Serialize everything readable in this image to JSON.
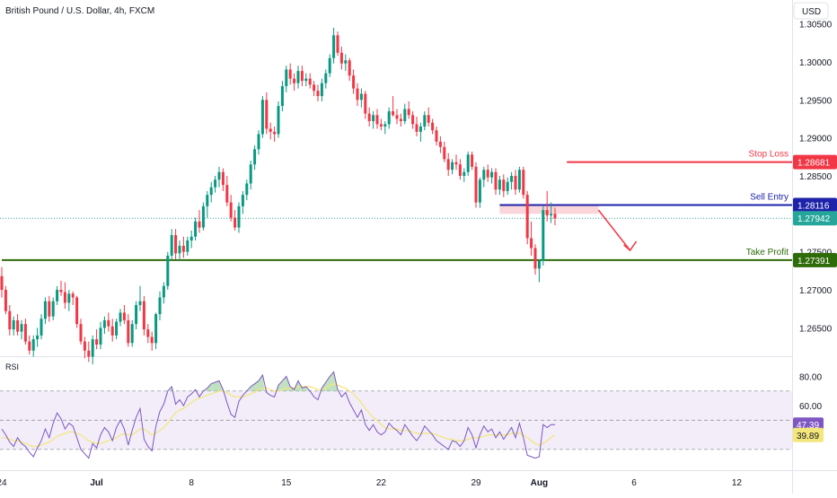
{
  "header": {
    "symbol_title": "British Pound / U.S. Dollar, 4h, FXCM",
    "currency": "USD",
    "rsi_label": "RSI"
  },
  "colors": {
    "up": "#089981",
    "down": "#f23645",
    "stop_loss": "#f23645",
    "sell_entry": "#1e22aa",
    "take_profit": "#2e6b09",
    "current_price_line": "#26a69a",
    "zone_fill": "#f8c8cf",
    "rsi_line": "#7e57c2",
    "rsi_ma": "#f3e67a",
    "rsi_band": "#ede7f6",
    "arrow": "#f23645"
  },
  "chart_data": [
    {
      "type": "candlestick",
      "title": "British Pound / U.S. Dollar, 4h, FXCM",
      "y_axis": {
        "ticks": [
          "1.26500",
          "1.27000",
          "1.27500",
          "1.28000",
          "1.28500",
          "1.29000",
          "1.29500",
          "1.30000",
          "1.30500"
        ],
        "ylim": [
          1.2615,
          1.3072
        ]
      },
      "x_axis": {
        "ticks": [
          "24",
          "Jul",
          "8",
          "15",
          "22",
          "29",
          "Aug",
          "6",
          "12"
        ],
        "tick_index": [
          0,
          24,
          48,
          72,
          96,
          120,
          136,
          160,
          186
        ]
      },
      "levels": [
        {
          "name": "Stop Loss",
          "value": 1.28681,
          "value_label": "1.28681"
        },
        {
          "name": "Sell Entry",
          "value": 1.28116,
          "value_label": "1.28116"
        },
        {
          "name": "Take Profit",
          "value": 1.27391,
          "value_label": "1.27391"
        }
      ],
      "current_price": {
        "value": 1.27942,
        "value_label": "1.27942"
      },
      "sell_zone": {
        "from": 1.28,
        "to": 1.2811,
        "start_index": 126,
        "end_index": 151
      },
      "projection_arrow": {
        "from_index": 151,
        "from_price": 1.2805,
        "to_index": 159,
        "to_price": 1.2752
      },
      "candles": [
        [
          1.2718,
          1.273,
          1.269,
          1.27
        ],
        [
          1.27,
          1.2705,
          1.2668,
          1.2672
        ],
        [
          1.2672,
          1.268,
          1.264,
          1.2648
        ],
        [
          1.2648,
          1.2665,
          1.264,
          1.266
        ],
        [
          1.266,
          1.2668,
          1.264,
          1.2645
        ],
        [
          1.2645,
          1.266,
          1.2635,
          1.2655
        ],
        [
          1.2655,
          1.2662,
          1.2628,
          1.2632
        ],
        [
          1.2632,
          1.264,
          1.2615,
          1.262
        ],
        [
          1.262,
          1.264,
          1.2612,
          1.2635
        ],
        [
          1.2635,
          1.265,
          1.2625,
          1.264
        ],
        [
          1.264,
          1.2668,
          1.2635,
          1.2662
        ],
        [
          1.2662,
          1.269,
          1.2655,
          1.2685
        ],
        [
          1.2685,
          1.2692,
          1.2658,
          1.2665
        ],
        [
          1.2665,
          1.269,
          1.266,
          1.2685
        ],
        [
          1.2685,
          1.2705,
          1.268,
          1.27
        ],
        [
          1.27,
          1.2712,
          1.2692,
          1.2697
        ],
        [
          1.2697,
          1.271,
          1.2675,
          1.2683
        ],
        [
          1.2683,
          1.27,
          1.2672,
          1.2695
        ],
        [
          1.2695,
          1.2698,
          1.268,
          1.269
        ],
        [
          1.269,
          1.2692,
          1.265,
          1.2655
        ],
        [
          1.2655,
          1.2662,
          1.2628,
          1.2632
        ],
        [
          1.2632,
          1.2638,
          1.261,
          1.262
        ],
        [
          1.262,
          1.2632,
          1.2605,
          1.2612
        ],
        [
          1.2612,
          1.264,
          1.2602,
          1.2635
        ],
        [
          1.2635,
          1.2648,
          1.2622,
          1.2628
        ],
        [
          1.2628,
          1.2658,
          1.2622,
          1.265
        ],
        [
          1.265,
          1.2665,
          1.2642,
          1.266
        ],
        [
          1.266,
          1.267,
          1.2645,
          1.2652
        ],
        [
          1.2652,
          1.2662,
          1.2632,
          1.264
        ],
        [
          1.264,
          1.2662,
          1.2635,
          1.2658
        ],
        [
          1.2658,
          1.2675,
          1.2652,
          1.267
        ],
        [
          1.267,
          1.268,
          1.2655,
          1.266
        ],
        [
          1.266,
          1.2668,
          1.2625,
          1.263
        ],
        [
          1.263,
          1.266,
          1.2625,
          1.2655
        ],
        [
          1.2655,
          1.2685,
          1.2648,
          1.268
        ],
        [
          1.268,
          1.2705,
          1.2672,
          1.2685
        ],
        [
          1.2685,
          1.2692,
          1.264,
          1.2648
        ],
        [
          1.2648,
          1.2655,
          1.263,
          1.2638
        ],
        [
          1.2638,
          1.2645,
          1.262,
          1.263
        ],
        [
          1.263,
          1.267,
          1.2622,
          1.2668
        ],
        [
          1.2668,
          1.2698,
          1.266,
          1.269
        ],
        [
          1.269,
          1.271,
          1.2682,
          1.2705
        ],
        [
          1.2705,
          1.275,
          1.27,
          1.2745
        ],
        [
          1.2745,
          1.278,
          1.2738,
          1.2772
        ],
        [
          1.2772,
          1.278,
          1.274,
          1.2748
        ],
        [
          1.2748,
          1.2765,
          1.2738,
          1.2758
        ],
        [
          1.2758,
          1.277,
          1.2742,
          1.275
        ],
        [
          1.275,
          1.277,
          1.2745,
          1.2765
        ],
        [
          1.2765,
          1.2778,
          1.2755,
          1.277
        ],
        [
          1.277,
          1.2795,
          1.2765,
          1.279
        ],
        [
          1.279,
          1.2805,
          1.2775,
          1.2782
        ],
        [
          1.2782,
          1.2815,
          1.2778,
          1.281
        ],
        [
          1.281,
          1.283,
          1.2795,
          1.2825
        ],
        [
          1.2825,
          1.2842,
          1.2815,
          1.2835
        ],
        [
          1.2835,
          1.285,
          1.2828,
          1.2845
        ],
        [
          1.2845,
          1.2862,
          1.2835,
          1.2855
        ],
        [
          1.2855,
          1.286,
          1.283,
          1.2838
        ],
        [
          1.2838,
          1.285,
          1.281,
          1.2815
        ],
        [
          1.2815,
          1.2825,
          1.279,
          1.2795
        ],
        [
          1.2795,
          1.2805,
          1.2778,
          1.2782
        ],
        [
          1.2782,
          1.2815,
          1.2775,
          1.281
        ],
        [
          1.281,
          1.283,
          1.28,
          1.2825
        ],
        [
          1.2825,
          1.2845,
          1.2818,
          1.284
        ],
        [
          1.284,
          1.287,
          1.2832,
          1.2865
        ],
        [
          1.2865,
          1.289,
          1.2858,
          1.2885
        ],
        [
          1.2885,
          1.291,
          1.2878,
          1.2905
        ],
        [
          1.2905,
          1.2955,
          1.29,
          1.295
        ],
        [
          1.295,
          1.296,
          1.2905,
          1.2912
        ],
        [
          1.2912,
          1.292,
          1.2898,
          1.2908
        ],
        [
          1.2908,
          1.2915,
          1.2895,
          1.2905
        ],
        [
          1.2905,
          1.2948,
          1.29,
          1.2942
        ],
        [
          1.2942,
          1.2975,
          1.2935,
          1.2968
        ],
        [
          1.2968,
          1.2995,
          1.296,
          1.299
        ],
        [
          1.299,
          1.2998,
          1.297,
          1.2978
        ],
        [
          1.2978,
          1.2985,
          1.2962,
          1.2972
        ],
        [
          1.2972,
          1.2995,
          1.2965,
          1.2988
        ],
        [
          1.2988,
          1.2995,
          1.2968,
          1.2975
        ],
        [
          1.2975,
          1.2985,
          1.2968,
          1.2978
        ],
        [
          1.2978,
          1.2985,
          1.2965,
          1.297
        ],
        [
          1.297,
          1.2975,
          1.2955,
          1.2962
        ],
        [
          1.2962,
          1.297,
          1.2948,
          1.2955
        ],
        [
          1.2955,
          1.2978,
          1.2948,
          1.2972
        ],
        [
          1.2972,
          1.299,
          1.2965,
          1.2985
        ],
        [
          1.2985,
          1.301,
          1.298,
          1.3005
        ],
        [
          1.3005,
          1.3045,
          1.2998,
          1.3035
        ],
        [
          1.3035,
          1.304,
          1.3008,
          1.3012
        ],
        [
          1.3012,
          1.302,
          1.299,
          1.2998
        ],
        [
          1.2998,
          1.301,
          1.2988,
          1.3002
        ],
        [
          1.3002,
          1.3005,
          1.2975,
          1.2982
        ],
        [
          1.2982,
          1.299,
          1.2958,
          1.2965
        ],
        [
          1.2965,
          1.2972,
          1.2942,
          1.295
        ],
        [
          1.295,
          1.2965,
          1.294,
          1.2958
        ],
        [
          1.2958,
          1.2962,
          1.2925,
          1.2932
        ],
        [
          1.2932,
          1.294,
          1.2915,
          1.2922
        ],
        [
          1.2922,
          1.2935,
          1.2912,
          1.293
        ],
        [
          1.293,
          1.2938,
          1.2912,
          1.2918
        ],
        [
          1.2918,
          1.2925,
          1.291,
          1.2915
        ],
        [
          1.2915,
          1.2922,
          1.2905,
          1.2918
        ],
        [
          1.2918,
          1.294,
          1.2912,
          1.2935
        ],
        [
          1.2935,
          1.2955,
          1.2928,
          1.293
        ],
        [
          1.293,
          1.2938,
          1.2918,
          1.2925
        ],
        [
          1.2925,
          1.2932,
          1.2915,
          1.2922
        ],
        [
          1.2922,
          1.2945,
          1.2918,
          1.2938
        ],
        [
          1.2938,
          1.2948,
          1.2925,
          1.293
        ],
        [
          1.293,
          1.2935,
          1.2912,
          1.2918
        ],
        [
          1.2918,
          1.2928,
          1.2902,
          1.2908
        ],
        [
          1.2908,
          1.292,
          1.2895,
          1.2915
        ],
        [
          1.2915,
          1.2935,
          1.291,
          1.293
        ],
        [
          1.293,
          1.294,
          1.2915,
          1.292
        ],
        [
          1.292,
          1.2925,
          1.2905,
          1.291
        ],
        [
          1.291,
          1.2915,
          1.289,
          1.2895
        ],
        [
          1.2895,
          1.2902,
          1.288,
          1.2888
        ],
        [
          1.2888,
          1.2895,
          1.2868,
          1.2872
        ],
        [
          1.2872,
          1.288,
          1.285,
          1.2858
        ],
        [
          1.2858,
          1.2872,
          1.2852,
          1.2868
        ],
        [
          1.2868,
          1.2878,
          1.2858,
          1.2865
        ],
        [
          1.2865,
          1.2872,
          1.2845,
          1.285
        ],
        [
          1.285,
          1.286,
          1.2842,
          1.2855
        ],
        [
          1.2855,
          1.2882,
          1.285,
          1.2878
        ],
        [
          1.2878,
          1.2882,
          1.2858,
          1.2862
        ],
        [
          1.2862,
          1.2868,
          1.2808,
          1.2815
        ],
        [
          1.2815,
          1.2848,
          1.2808,
          1.2845
        ],
        [
          1.2845,
          1.2862,
          1.2835,
          1.2858
        ],
        [
          1.2858,
          1.2865,
          1.2842,
          1.2848
        ],
        [
          1.2848,
          1.286,
          1.284,
          1.2855
        ],
        [
          1.2855,
          1.286,
          1.2825,
          1.2832
        ],
        [
          1.2832,
          1.285,
          1.2825,
          1.2845
        ],
        [
          1.2845,
          1.2852,
          1.2822,
          1.283
        ],
        [
          1.283,
          1.2848,
          1.2825,
          1.2842
        ],
        [
          1.2842,
          1.2855,
          1.2832,
          1.285
        ],
        [
          1.285,
          1.2858,
          1.2825,
          1.2832
        ],
        [
          1.2832,
          1.2862,
          1.2828,
          1.2858
        ],
        [
          1.2858,
          1.2862,
          1.282,
          1.2825
        ],
        [
          1.2825,
          1.283,
          1.276,
          1.2768
        ],
        [
          1.2768,
          1.279,
          1.2745,
          1.2755
        ],
        [
          1.2755,
          1.276,
          1.272,
          1.2728
        ],
        [
          1.2728,
          1.274,
          1.271,
          1.2738
        ],
        [
          1.2738,
          1.281,
          1.2732,
          1.2805
        ],
        [
          1.2805,
          1.283,
          1.279,
          1.2798
        ],
        [
          1.2798,
          1.2815,
          1.2788,
          1.28
        ],
        [
          1.28,
          1.2808,
          1.2785,
          1.2794
        ]
      ]
    },
    {
      "type": "line",
      "title": "RSI",
      "y_axis": {
        "ticks": [
          "80.00",
          "60.00"
        ],
        "ylim": [
          17,
          92
        ],
        "band": [
          30,
          70
        ]
      },
      "series": [
        {
          "role": "rsi",
          "values": [
            44,
            40,
            35,
            32,
            38,
            34,
            32,
            28,
            25,
            31,
            36,
            44,
            38,
            48,
            55,
            51,
            44,
            48,
            46,
            38,
            30,
            27,
            24,
            34,
            31,
            40,
            45,
            42,
            36,
            45,
            50,
            44,
            33,
            43,
            52,
            58,
            37,
            32,
            29,
            46,
            56,
            61,
            70,
            73,
            61,
            64,
            60,
            66,
            68,
            71,
            66,
            70,
            72,
            75,
            76,
            77,
            71,
            62,
            54,
            52,
            63,
            67,
            70,
            73,
            75,
            77,
            81,
            69,
            67,
            66,
            74,
            77,
            80,
            73,
            71,
            77,
            72,
            73,
            70,
            66,
            64,
            72,
            76,
            80,
            83,
            71,
            66,
            69,
            62,
            57,
            52,
            57,
            47,
            43,
            47,
            42,
            40,
            42,
            48,
            45,
            43,
            40,
            47,
            43,
            39,
            36,
            40,
            46,
            43,
            40,
            36,
            34,
            32,
            30,
            36,
            35,
            32,
            36,
            45,
            40,
            31,
            40,
            46,
            42,
            44,
            38,
            42,
            37,
            41,
            45,
            38,
            48,
            38,
            26,
            25,
            24,
            25,
            47,
            45,
            47,
            47
          ]
        },
        {
          "role": "rsi_ma",
          "values": [
            38,
            38,
            37,
            36,
            36,
            35,
            34,
            33,
            32,
            32,
            33,
            34,
            35,
            37,
            39,
            40,
            41,
            42,
            42,
            41,
            40,
            38,
            36,
            35,
            34,
            34,
            35,
            36,
            37,
            38,
            40,
            41,
            40,
            40,
            42,
            44,
            44,
            42,
            40,
            41,
            43,
            45,
            48,
            52,
            55,
            57,
            58,
            60,
            62,
            64,
            65,
            66,
            67,
            68,
            69,
            70,
            70,
            69,
            67,
            66,
            66,
            66,
            67,
            68,
            69,
            71,
            72,
            72,
            71,
            70,
            70,
            71,
            72,
            72,
            72,
            73,
            73,
            73,
            73,
            72,
            71,
            71,
            72,
            74,
            75,
            74,
            73,
            72,
            70,
            68,
            65,
            62,
            58,
            55,
            52,
            50,
            47,
            45,
            44,
            44,
            44,
            43,
            43,
            43,
            42,
            41,
            41,
            41,
            41,
            41,
            40,
            39,
            38,
            37,
            37,
            36,
            36,
            36,
            37,
            38,
            38,
            38,
            39,
            40,
            40,
            40,
            40,
            40,
            40,
            41,
            41,
            41,
            40,
            38,
            36,
            34,
            33,
            34,
            36,
            38,
            39.89
          ]
        }
      ],
      "last_values": {
        "rsi": "47.39",
        "rsi_ma": "39.89"
      }
    }
  ]
}
